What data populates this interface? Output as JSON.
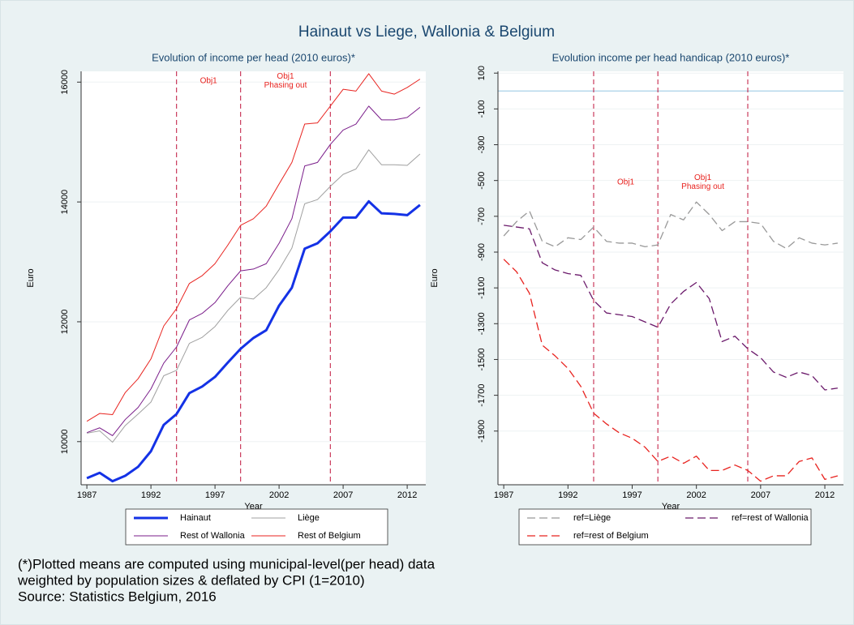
{
  "title": "Hainaut vs Liege, Wallonia & Belgium",
  "notes": [
    "(*)Plotted means are computed using municipal-level(per head) data",
    "weighted by population sizes & deflated by CPI (1=2010)",
    "Source: Statistics Belgium, 2016"
  ],
  "chart_data": [
    {
      "type": "line",
      "title": "Evolution of income per head (2010 euros)*",
      "xlabel": "Year",
      "ylabel": "Euro",
      "x": [
        1987,
        1988,
        1989,
        1990,
        1991,
        1992,
        1993,
        1994,
        1995,
        1996,
        1997,
        1998,
        1999,
        2000,
        2001,
        2002,
        2003,
        2004,
        2005,
        2006,
        2007,
        2008,
        2009,
        2010,
        2011,
        2012,
        2013
      ],
      "xlim": [
        1986.55,
        2013.45
      ],
      "xticks": [
        1987,
        1992,
        1997,
        2002,
        2007,
        2012
      ],
      "ylim": [
        9280,
        16180
      ],
      "yticks": [
        10000,
        12000,
        14000,
        16000
      ],
      "grid": true,
      "vlines": [
        1994,
        1999,
        2006
      ],
      "vline_color": "#c0143c",
      "annotations": [
        [
          "Obj1"
        ],
        [
          "Obj1",
          "Phasing out"
        ]
      ],
      "series": [
        {
          "name": "Hainaut",
          "color": "#1432e6",
          "width": 3,
          "dash": "solid",
          "values": [
            9390,
            9480,
            9340,
            9430,
            9580,
            9840,
            10280,
            10460,
            10810,
            10920,
            11080,
            11320,
            11550,
            11730,
            11860,
            12270,
            12570,
            13220,
            13310,
            13510,
            13740,
            13740,
            14010,
            13810,
            13800,
            13780,
            13950
          ]
        },
        {
          "name": "Liège",
          "color": "#a0a0a0",
          "width": 1,
          "dash": "solid",
          "values": [
            10140,
            10180,
            9990,
            10270,
            10460,
            10660,
            11100,
            11190,
            11640,
            11740,
            11920,
            12190,
            12410,
            12380,
            12570,
            12870,
            13230,
            13970,
            14040,
            14260,
            14460,
            14550,
            14870,
            14620,
            14620,
            14610,
            14800
          ]
        },
        {
          "name": "Rest of Wallonia",
          "color": "#7a1d8a",
          "width": 1,
          "dash": "solid",
          "values": [
            10150,
            10230,
            10100,
            10370,
            10570,
            10880,
            11310,
            11580,
            12030,
            12140,
            12320,
            12600,
            12850,
            12880,
            12970,
            13310,
            13720,
            14600,
            14660,
            14960,
            15200,
            15300,
            15600,
            15370,
            15370,
            15410,
            15580
          ]
        },
        {
          "name": "Rest of Belgium",
          "color": "#e8231f",
          "width": 1,
          "dash": "solid",
          "values": [
            10340,
            10470,
            10450,
            10820,
            11050,
            11380,
            11930,
            12220,
            12640,
            12770,
            12970,
            13280,
            13610,
            13720,
            13930,
            14300,
            14660,
            15300,
            15320,
            15600,
            15880,
            15850,
            16140,
            15850,
            15800,
            15910,
            16050
          ]
        }
      ]
    },
    {
      "type": "line",
      "title": "Evolution income per head handicap (2010 euros)*",
      "xlabel": "Year",
      "ylabel": "Euro",
      "x": [
        1987,
        1988,
        1989,
        1990,
        1991,
        1992,
        1993,
        1994,
        1995,
        1996,
        1997,
        1998,
        1999,
        2000,
        2001,
        2002,
        2003,
        2004,
        2005,
        2006,
        2007,
        2008,
        2009,
        2010,
        2011,
        2012,
        2013
      ],
      "xlim": [
        1986.55,
        2013.45
      ],
      "xticks": [
        1987,
        1992,
        1997,
        2002,
        2007,
        2012
      ],
      "ylim": [
        -2200,
        110
      ],
      "yticks": [
        100,
        -100,
        -300,
        -500,
        -700,
        -900,
        -1100,
        -1300,
        -1500,
        -1700,
        -1900
      ],
      "grid": true,
      "hline": 0,
      "hline_color": "#a8d0e8",
      "vlines": [
        1994,
        1999,
        2006
      ],
      "vline_color": "#c0143c",
      "annotations": [
        [
          "Obj1"
        ],
        [
          "Obj1",
          "Phasing out"
        ]
      ],
      "series": [
        {
          "name": "ref=Liège",
          "color": "#999999",
          "width": 1.3,
          "dash": "dashed",
          "values": [
            -810,
            -730,
            -670,
            -840,
            -870,
            -820,
            -830,
            -760,
            -840,
            -850,
            -850,
            -870,
            -860,
            -690,
            -720,
            -620,
            -690,
            -780,
            -730,
            -730,
            -740,
            -840,
            -880,
            -820,
            -850,
            -860,
            -850
          ]
        },
        {
          "name": "ref=rest of Wallonia",
          "color": "#6b1a6b",
          "width": 1.3,
          "dash": "dashed",
          "values": [
            -750,
            -760,
            -770,
            -960,
            -1000,
            -1020,
            -1030,
            -1170,
            -1240,
            -1250,
            -1260,
            -1290,
            -1320,
            -1190,
            -1120,
            -1070,
            -1160,
            -1400,
            -1370,
            -1440,
            -1490,
            -1570,
            -1600,
            -1570,
            -1590,
            -1670,
            -1660
          ]
        },
        {
          "name": "ref=rest of Belgium",
          "color": "#e8231f",
          "width": 1.3,
          "dash": "dashed",
          "values": [
            -940,
            -1010,
            -1130,
            -1420,
            -1480,
            -1550,
            -1650,
            -1800,
            -1860,
            -1910,
            -1940,
            -1990,
            -2070,
            -2040,
            -2080,
            -2040,
            -2120,
            -2120,
            -2090,
            -2120,
            -2180,
            -2150,
            -2150,
            -2070,
            -2050,
            -2170,
            -2150
          ]
        }
      ]
    }
  ]
}
